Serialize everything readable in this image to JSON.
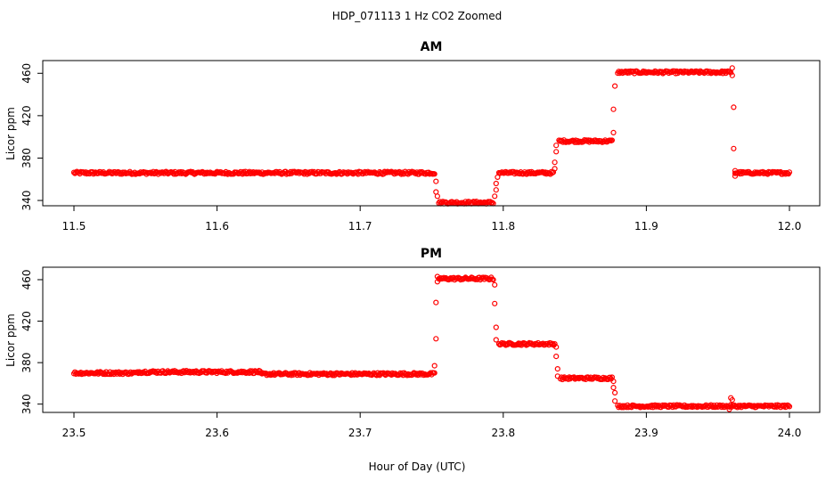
{
  "figure": {
    "title": "HDP_071113  1 Hz CO2 Zoomed",
    "xlabel": "Hour of Day (UTC)"
  },
  "chart_data": [
    {
      "type": "scatter",
      "title": "AM",
      "ylabel": "Licor ppm",
      "xlim": [
        11.5,
        12.0
      ],
      "ylim": [
        335,
        472
      ],
      "xticks": [
        "11.5",
        "11.6",
        "11.7",
        "11.8",
        "11.9",
        "12.0"
      ],
      "yticks": [
        "340",
        "380",
        "420",
        "460"
      ],
      "marker": "open-circle",
      "color": "#ff0000",
      "segments": [
        {
          "x": [
            11.5,
            11.752
          ],
          "y": 366,
          "noise": 1.3
        },
        {
          "x": [
            11.755,
            11.793
          ],
          "y": 338,
          "noise": 1.2
        },
        {
          "x": [
            11.797,
            11.835
          ],
          "y": 366,
          "noise": 1.2
        },
        {
          "x": [
            11.839,
            11.876
          ],
          "y": 396,
          "noise": 1.2
        },
        {
          "x": [
            11.88,
            11.959
          ],
          "y": 461,
          "noise": 1.2
        },
        {
          "x": [
            11.962,
            12.0
          ],
          "y": 366,
          "noise": 1.2
        }
      ],
      "transitions": [
        {
          "x": 11.753,
          "y": 358
        },
        {
          "x": 11.753,
          "y": 348
        },
        {
          "x": 11.754,
          "y": 344
        },
        {
          "x": 11.794,
          "y": 344
        },
        {
          "x": 11.795,
          "y": 350
        },
        {
          "x": 11.795,
          "y": 356
        },
        {
          "x": 11.796,
          "y": 362
        },
        {
          "x": 11.836,
          "y": 370
        },
        {
          "x": 11.836,
          "y": 376
        },
        {
          "x": 11.837,
          "y": 386
        },
        {
          "x": 11.837,
          "y": 392
        },
        {
          "x": 11.877,
          "y": 404
        },
        {
          "x": 11.877,
          "y": 426
        },
        {
          "x": 11.878,
          "y": 448
        },
        {
          "x": 11.96,
          "y": 465
        },
        {
          "x": 11.96,
          "y": 458
        },
        {
          "x": 11.961,
          "y": 428
        },
        {
          "x": 11.961,
          "y": 389
        },
        {
          "x": 11.962,
          "y": 368
        },
        {
          "x": 11.962,
          "y": 363
        }
      ]
    },
    {
      "type": "scatter",
      "title": "PM",
      "ylabel": "Licor ppm",
      "xlim": [
        23.5,
        24.0
      ],
      "ylim": [
        332,
        472
      ],
      "xticks": [
        "23.5",
        "23.6",
        "23.7",
        "23.8",
        "23.9",
        "24.0"
      ],
      "yticks": [
        "340",
        "380",
        "420",
        "460"
      ],
      "marker": "open-circle",
      "color": "#ff0000",
      "segments": [
        {
          "x": [
            23.5,
            23.545
          ],
          "y": 370,
          "noise": 1.3
        },
        {
          "x": [
            23.545,
            23.63
          ],
          "y": 371,
          "noise": 1.3
        },
        {
          "x": [
            23.63,
            23.752
          ],
          "y": 369,
          "noise": 1.3
        },
        {
          "x": [
            23.755,
            23.793
          ],
          "y": 461,
          "noise": 1.3
        },
        {
          "x": [
            23.797,
            23.836
          ],
          "y": 398,
          "noise": 1.2
        },
        {
          "x": [
            23.84,
            23.876
          ],
          "y": 365,
          "noise": 1.2
        },
        {
          "x": [
            23.88,
            24.0
          ],
          "y": 338,
          "noise": 1.2
        }
      ],
      "transitions": [
        {
          "x": 23.752,
          "y": 377
        },
        {
          "x": 23.753,
          "y": 403
        },
        {
          "x": 23.753,
          "y": 438
        },
        {
          "x": 23.754,
          "y": 458
        },
        {
          "x": 23.754,
          "y": 463
        },
        {
          "x": 23.794,
          "y": 455
        },
        {
          "x": 23.794,
          "y": 437
        },
        {
          "x": 23.795,
          "y": 414
        },
        {
          "x": 23.795,
          "y": 402
        },
        {
          "x": 23.837,
          "y": 395
        },
        {
          "x": 23.837,
          "y": 386
        },
        {
          "x": 23.838,
          "y": 374
        },
        {
          "x": 23.838,
          "y": 367
        },
        {
          "x": 23.877,
          "y": 362
        },
        {
          "x": 23.877,
          "y": 356
        },
        {
          "x": 23.878,
          "y": 351
        },
        {
          "x": 23.878,
          "y": 343
        },
        {
          "x": 23.959,
          "y": 346
        },
        {
          "x": 23.96,
          "y": 344
        },
        {
          "x": 23.958,
          "y": 335
        }
      ]
    }
  ]
}
